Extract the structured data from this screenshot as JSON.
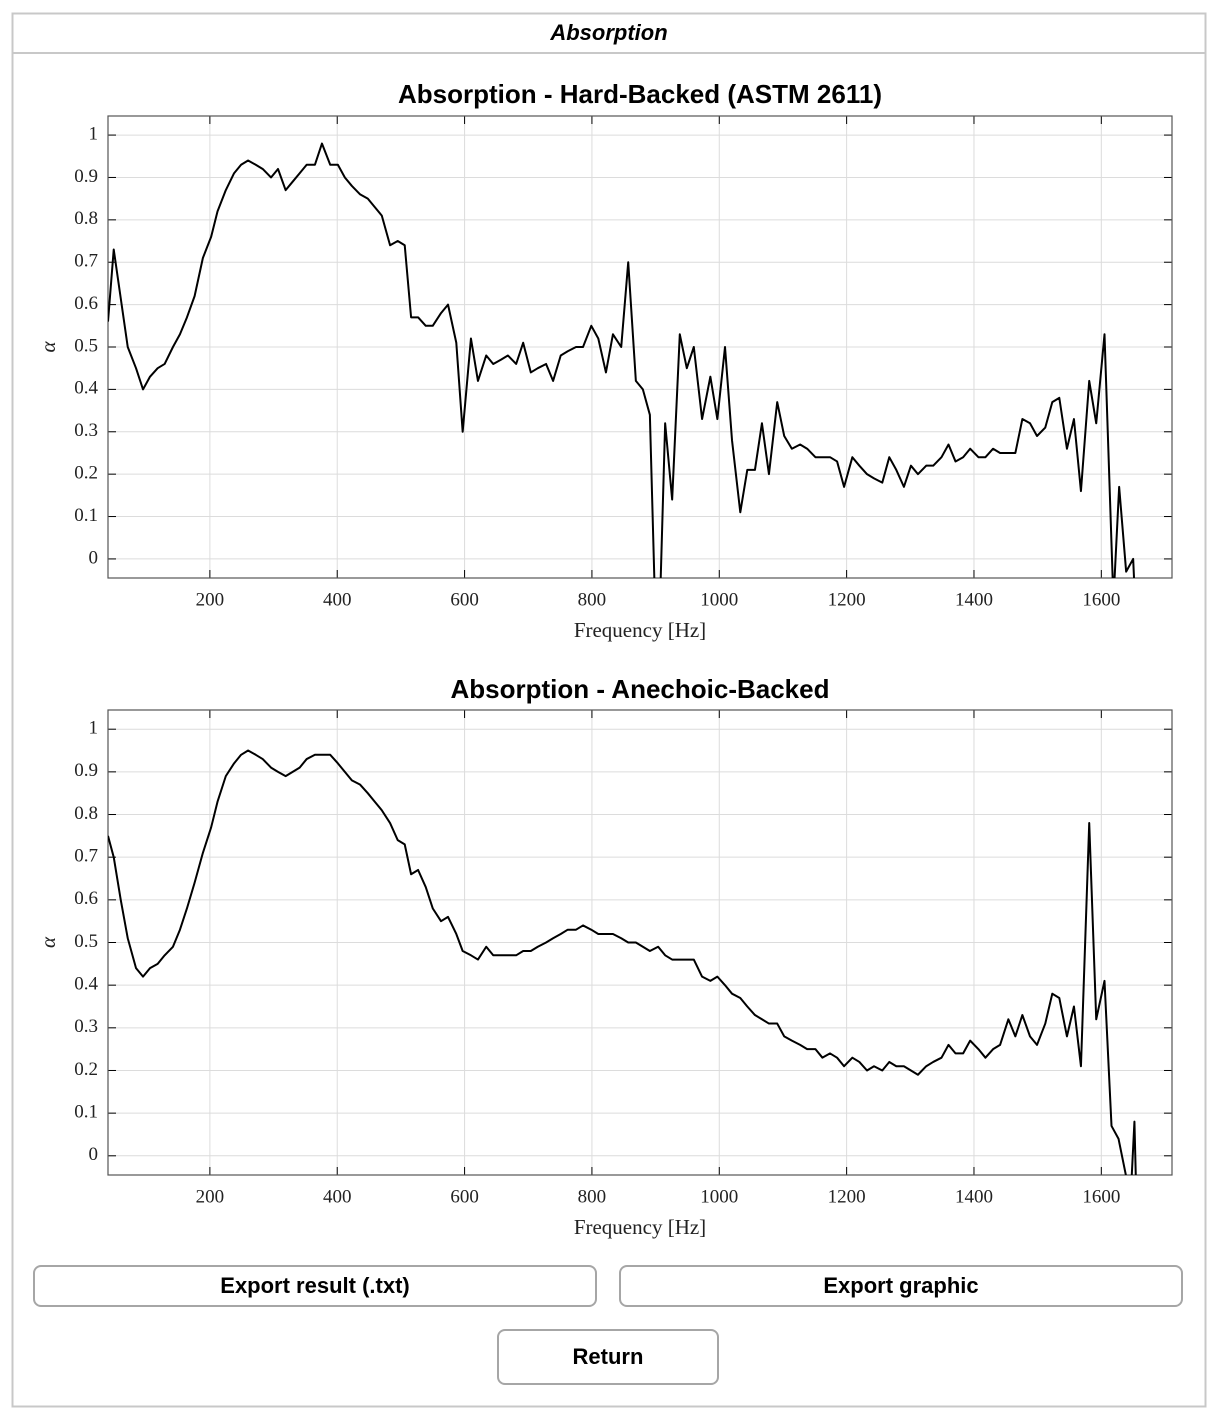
{
  "window": {
    "title": "Absorption"
  },
  "chart_data": [
    {
      "type": "line",
      "title": "Absorption - Hard-Backed (ASTM 2611)",
      "x_label": "Frequency [Hz]",
      "y_label": "α",
      "color": "#000000",
      "grid": true,
      "xlim": [
        40,
        1711
      ],
      "ylim": [
        -0.045,
        1.045
      ],
      "xticks": [
        200,
        400,
        600,
        800,
        1000,
        1200,
        1400,
        1600
      ],
      "yticks": [
        0,
        0.1,
        0.2,
        0.3,
        0.4,
        0.5,
        0.6,
        0.7,
        0.8,
        0.9,
        1
      ],
      "x": [
        40,
        49,
        71,
        84,
        95,
        106,
        118,
        129,
        142,
        153,
        164,
        176,
        189,
        202,
        212,
        225,
        238,
        249,
        260,
        272,
        283,
        296,
        307,
        319,
        330,
        341,
        352,
        365,
        376,
        389,
        401,
        412,
        423,
        436,
        448,
        459,
        470,
        483,
        495,
        506,
        516,
        527,
        539,
        550,
        563,
        574,
        587,
        597,
        610,
        621,
        634,
        645,
        657,
        668,
        681,
        692,
        704,
        715,
        728,
        739,
        751,
        762,
        775,
        786,
        799,
        810,
        822,
        833,
        846,
        857,
        869,
        880,
        891,
        899,
        907,
        915,
        926,
        938,
        949,
        960,
        973,
        986,
        997,
        1009,
        1020,
        1033,
        1044,
        1056,
        1067,
        1078,
        1091,
        1102,
        1114,
        1127,
        1138,
        1151,
        1162,
        1174,
        1185,
        1196,
        1209,
        1220,
        1232,
        1243,
        1256,
        1267,
        1278,
        1290,
        1301,
        1312,
        1325,
        1336,
        1349,
        1360,
        1371,
        1383,
        1394,
        1407,
        1418,
        1430,
        1441,
        1454,
        1465,
        1476,
        1488,
        1499,
        1512,
        1523,
        1534,
        1546,
        1557,
        1568,
        1581,
        1592,
        1605,
        1619,
        1628,
        1639,
        1650,
        1653
      ],
      "values": [
        0.56,
        0.73,
        0.5,
        0.45,
        0.4,
        0.43,
        0.45,
        0.46,
        0.5,
        0.53,
        0.57,
        0.62,
        0.71,
        0.76,
        0.82,
        0.87,
        0.91,
        0.93,
        0.94,
        0.93,
        0.92,
        0.9,
        0.92,
        0.87,
        0.89,
        0.91,
        0.93,
        0.93,
        0.98,
        0.93,
        0.93,
        0.9,
        0.88,
        0.86,
        0.85,
        0.83,
        0.81,
        0.74,
        0.75,
        0.74,
        0.57,
        0.57,
        0.55,
        0.55,
        0.58,
        0.6,
        0.51,
        0.3,
        0.52,
        0.42,
        0.48,
        0.46,
        0.47,
        0.48,
        0.46,
        0.51,
        0.44,
        0.45,
        0.46,
        0.42,
        0.48,
        0.49,
        0.5,
        0.5,
        0.55,
        0.52,
        0.44,
        0.53,
        0.5,
        0.7,
        0.42,
        0.4,
        0.34,
        -0.1,
        -0.1,
        0.32,
        0.14,
        0.53,
        0.45,
        0.5,
        0.33,
        0.43,
        0.33,
        0.5,
        0.28,
        0.11,
        0.21,
        0.21,
        0.32,
        0.2,
        0.37,
        0.29,
        0.26,
        0.27,
        0.26,
        0.24,
        0.24,
        0.24,
        0.23,
        0.17,
        0.24,
        0.22,
        0.2,
        0.19,
        0.18,
        0.24,
        0.21,
        0.17,
        0.22,
        0.2,
        0.22,
        0.22,
        0.24,
        0.27,
        0.23,
        0.24,
        0.26,
        0.24,
        0.24,
        0.26,
        0.25,
        0.25,
        0.25,
        0.33,
        0.32,
        0.29,
        0.31,
        0.37,
        0.38,
        0.26,
        0.33,
        0.16,
        0.42,
        0.32,
        0.53,
        -0.1,
        0.17,
        -0.03,
        0,
        -0.1
      ]
    },
    {
      "type": "line",
      "title": "Absorption - Anechoic-Backed",
      "x_label": "Frequency [Hz]",
      "y_label": "α",
      "color": "#000000",
      "grid": true,
      "xlim": [
        40,
        1711
      ],
      "ylim": [
        -0.045,
        1.045
      ],
      "xticks": [
        200,
        400,
        600,
        800,
        1000,
        1200,
        1400,
        1600
      ],
      "yticks": [
        0,
        0.1,
        0.2,
        0.3,
        0.4,
        0.5,
        0.6,
        0.7,
        0.8,
        0.9,
        1
      ],
      "x": [
        40,
        49,
        60,
        71,
        84,
        95,
        106,
        118,
        129,
        142,
        153,
        164,
        176,
        189,
        202,
        212,
        225,
        238,
        249,
        260,
        272,
        283,
        296,
        307,
        319,
        330,
        341,
        352,
        365,
        376,
        389,
        401,
        412,
        423,
        436,
        448,
        459,
        470,
        483,
        495,
        506,
        516,
        527,
        539,
        550,
        563,
        574,
        587,
        597,
        610,
        621,
        634,
        645,
        657,
        668,
        681,
        692,
        704,
        715,
        728,
        739,
        751,
        762,
        775,
        786,
        799,
        810,
        822,
        833,
        846,
        857,
        869,
        880,
        891,
        904,
        915,
        926,
        938,
        949,
        960,
        973,
        986,
        997,
        1009,
        1020,
        1033,
        1044,
        1056,
        1067,
        1078,
        1091,
        1102,
        1114,
        1127,
        1138,
        1151,
        1162,
        1174,
        1185,
        1196,
        1209,
        1220,
        1232,
        1243,
        1256,
        1267,
        1278,
        1290,
        1301,
        1312,
        1325,
        1336,
        1349,
        1360,
        1371,
        1383,
        1394,
        1407,
        1418,
        1430,
        1441,
        1454,
        1465,
        1476,
        1488,
        1499,
        1512,
        1523,
        1534,
        1546,
        1557,
        1568,
        1581,
        1592,
        1605,
        1616,
        1627,
        1646,
        1652,
        1655
      ],
      "values": [
        0.75,
        0.7,
        0.6,
        0.51,
        0.44,
        0.42,
        0.44,
        0.45,
        0.47,
        0.49,
        0.53,
        0.58,
        0.64,
        0.71,
        0.77,
        0.83,
        0.89,
        0.92,
        0.94,
        0.95,
        0.94,
        0.93,
        0.91,
        0.9,
        0.89,
        0.9,
        0.91,
        0.93,
        0.94,
        0.94,
        0.94,
        0.92,
        0.9,
        0.88,
        0.87,
        0.85,
        0.83,
        0.81,
        0.78,
        0.74,
        0.73,
        0.66,
        0.67,
        0.63,
        0.58,
        0.55,
        0.56,
        0.52,
        0.48,
        0.47,
        0.46,
        0.49,
        0.47,
        0.47,
        0.47,
        0.47,
        0.48,
        0.48,
        0.49,
        0.5,
        0.51,
        0.52,
        0.53,
        0.53,
        0.54,
        0.53,
        0.52,
        0.52,
        0.52,
        0.51,
        0.5,
        0.5,
        0.49,
        0.48,
        0.49,
        0.47,
        0.46,
        0.46,
        0.46,
        0.46,
        0.42,
        0.41,
        0.42,
        0.4,
        0.38,
        0.37,
        0.35,
        0.33,
        0.32,
        0.31,
        0.31,
        0.28,
        0.27,
        0.26,
        0.25,
        0.25,
        0.23,
        0.24,
        0.23,
        0.21,
        0.23,
        0.22,
        0.2,
        0.21,
        0.2,
        0.22,
        0.21,
        0.21,
        0.2,
        0.19,
        0.21,
        0.22,
        0.23,
        0.26,
        0.24,
        0.24,
        0.27,
        0.25,
        0.23,
        0.25,
        0.26,
        0.32,
        0.28,
        0.33,
        0.28,
        0.26,
        0.31,
        0.38,
        0.37,
        0.28,
        0.35,
        0.21,
        0.78,
        0.32,
        0.41,
        0.07,
        0.04,
        -0.1,
        0.08,
        -0.1
      ]
    }
  ],
  "buttons": [
    "Export result (.txt)",
    "Export graphic",
    "Return"
  ]
}
